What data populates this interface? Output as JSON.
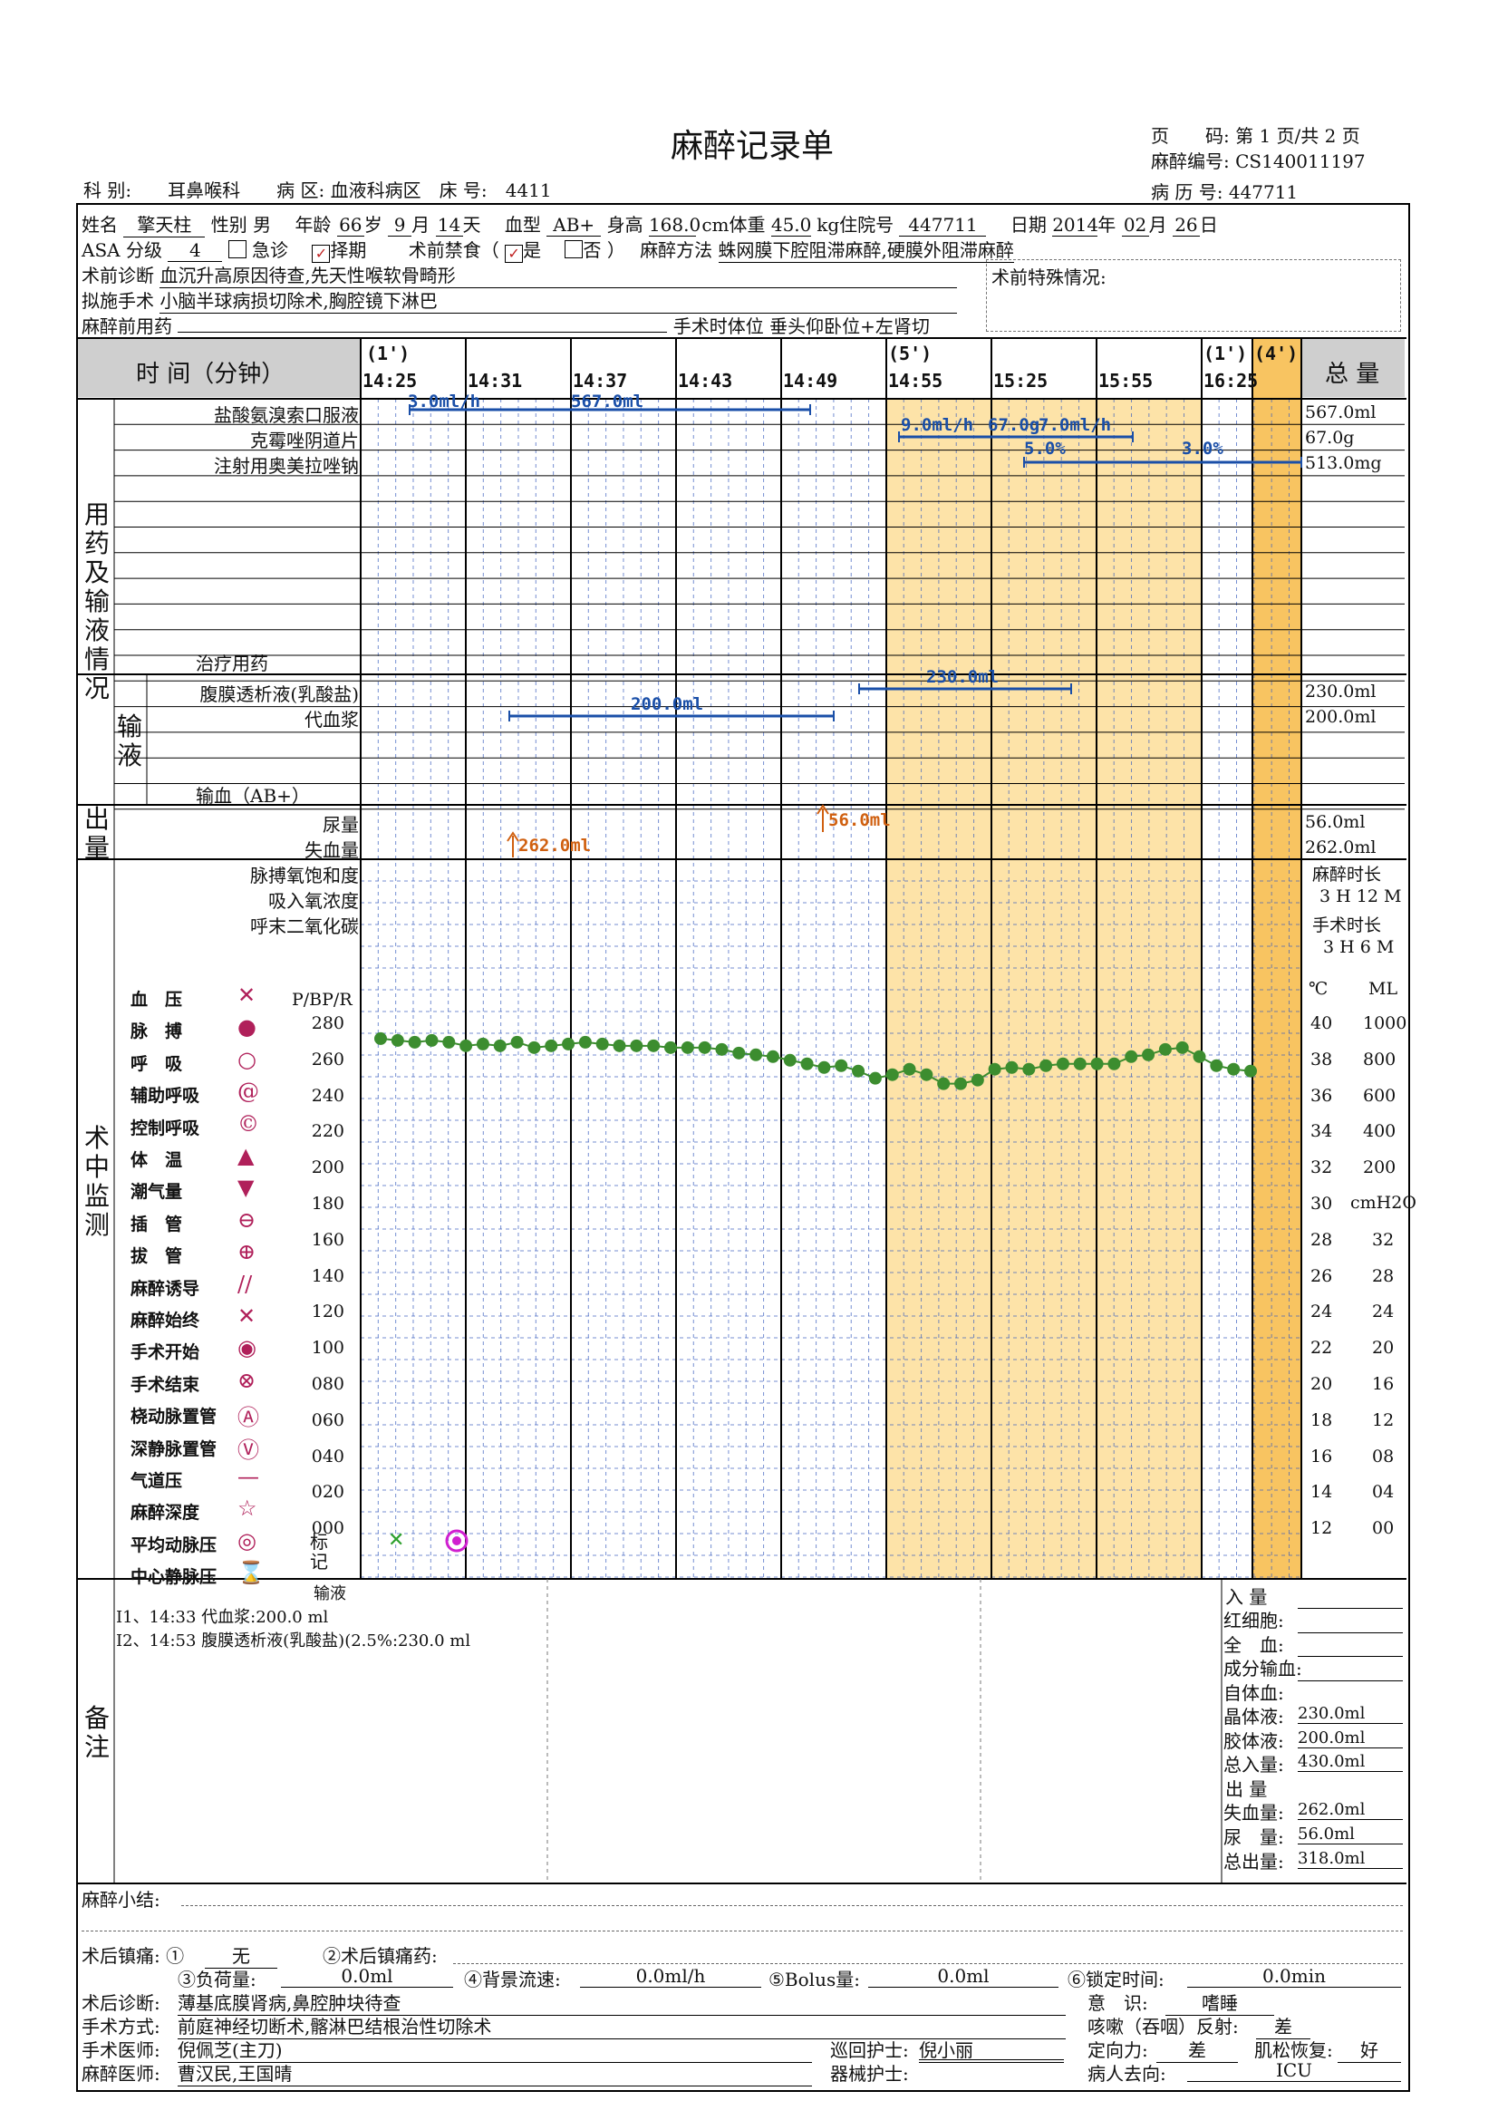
{
  "title": "麻醉记录单",
  "header": {
    "page_label": "页　　码:",
    "page_value": "第 1 页/共 2 页",
    "anesthesia_no_label": "麻醉编号:",
    "anesthesia_no": "CS140011197",
    "record_no_label": "病 历 号:",
    "record_no": "447711",
    "dept_label": "科 别:",
    "dept": "耳鼻喉科",
    "ward_label": "病 区:",
    "ward": "血液科病区",
    "bed_label": "床 号:",
    "bed": "4411"
  },
  "patient": {
    "name_label": "姓名",
    "name": "擎天柱",
    "sex_label": "性别",
    "sex": "男",
    "age_label": "年龄",
    "age": "66",
    "age_unit": "岁",
    "month": "9",
    "month_unit": "月",
    "day": "14",
    "day_unit": "天",
    "blood_label": "血型",
    "blood": "AB+",
    "height_label": "身高",
    "height": "168.0",
    "height_unit": "cm",
    "weight_label": "体重",
    "weight": "45.0",
    "weight_unit": "kg",
    "admission_label": "住院号",
    "admission": "447711",
    "date_label": "日期",
    "year": "2014",
    "year_unit": "年",
    "date_month": "02",
    "date_month_unit": "月",
    "date_day": "26",
    "date_day_unit": "日",
    "asa_label": "ASA 分级",
    "asa": "4",
    "emergency_label": "急诊",
    "elective_label": "择期",
    "fasting_label": "术前禁食（",
    "fasting_yes": "是",
    "fasting_no": "否 ）",
    "method_label": "麻醉方法",
    "method": "蛛网膜下腔阻滞麻醉,硬膜外阻滞麻醉",
    "diagnosis_label": "术前诊断",
    "diagnosis": "血沉升高原因待查,先天性喉软骨畸形",
    "special_label": "术前特殊情况:",
    "planned_label": "拟施手术",
    "planned": "小脑半球病损切除术,胸腔镜下淋巴",
    "premed_label": "麻醉前用药",
    "position_label": "手术时体位",
    "position": "垂头仰卧位+左肾切"
  },
  "time_header": {
    "label": "时 间（分钟）",
    "total_label": "总 量",
    "intervals": [
      "(1')",
      "(5')",
      "(1')",
      "(4')"
    ],
    "ticks": [
      "14:25",
      "14:31",
      "14:37",
      "14:43",
      "14:49",
      "14:55",
      "15:25",
      "15:55",
      "16:25"
    ]
  },
  "sections": {
    "medication": [
      "用",
      "药",
      "及",
      "输",
      "液",
      "情",
      "况"
    ],
    "infusion": [
      "输",
      "液"
    ],
    "output": [
      "出",
      "量"
    ],
    "monitor": [
      "术",
      "中",
      "监",
      "测"
    ],
    "notes": [
      "备",
      "注"
    ]
  },
  "drugs": [
    {
      "name": "盐酸氨溴索口服液",
      "total": "567.0ml",
      "labels": [
        "3.0ml/h",
        "567.0ml"
      ]
    },
    {
      "name": "克霉唑阴道片",
      "total": "67.0g",
      "labels": [
        "9.0ml/h",
        "67.0g",
        "7.0ml/h"
      ]
    },
    {
      "name": "注射用奥美拉唑钠",
      "total": "513.0mg",
      "labels": [
        "5.0%",
        "3.0%"
      ]
    }
  ],
  "treatment_label": "治疗用药",
  "fluids": [
    {
      "name": "腹膜透析液(乳酸盐)",
      "total": "230.0ml",
      "label": "230.0ml"
    },
    {
      "name": "代血浆",
      "total": "200.0ml",
      "label": "200.0ml"
    }
  ],
  "blood_label": "输血（AB+）",
  "outputs": [
    {
      "name": "尿量",
      "total": "56.0ml",
      "label": "56.0ml"
    },
    {
      "name": "失血量",
      "total": "262.0ml",
      "label": "262.0ml"
    }
  ],
  "resp_rows": [
    "脉搏氧饱和度",
    "吸入氧浓度",
    "呼末二氧化碳"
  ],
  "durations": {
    "anes_label": "麻醉时长",
    "anes": "3 H 12 M",
    "surg_label": "手术时长",
    "surg": "3 H 6 M"
  },
  "legend": [
    {
      "label": "血　压",
      "icon": "bp-icon",
      "glyph": "✕"
    },
    {
      "label": "脉　搏",
      "icon": "pulse-icon",
      "glyph": "●"
    },
    {
      "label": "呼　吸",
      "icon": "resp-icon",
      "glyph": "○"
    },
    {
      "label": "辅助呼吸",
      "icon": "assist-resp-icon",
      "glyph": "@"
    },
    {
      "label": "控制呼吸",
      "icon": "control-resp-icon",
      "glyph": "©"
    },
    {
      "label": "体　温",
      "icon": "temp-icon",
      "glyph": "▲"
    },
    {
      "label": "潮气量",
      "icon": "tidal-icon",
      "glyph": "▼"
    },
    {
      "label": "插　管",
      "icon": "intubate-icon",
      "glyph": "⊖"
    },
    {
      "label": "拔　管",
      "icon": "extubate-icon",
      "glyph": "⊕"
    },
    {
      "label": "麻醉诱导",
      "icon": "induction-icon",
      "glyph": "//"
    },
    {
      "label": "麻醉始终",
      "icon": "anes-start-end-icon",
      "glyph": "✕"
    },
    {
      "label": "手术开始",
      "icon": "surg-start-icon",
      "glyph": "◉"
    },
    {
      "label": "手术结束",
      "icon": "surg-end-icon",
      "glyph": "⊗"
    },
    {
      "label": "桡动脉置管",
      "icon": "radial-icon",
      "glyph": "Ⓐ"
    },
    {
      "label": "深静脉置管",
      "icon": "deep-vein-icon",
      "glyph": "Ⓥ"
    },
    {
      "label": "气道压",
      "icon": "airway-icon",
      "glyph": "—"
    },
    {
      "label": "麻醉深度",
      "icon": "depth-icon",
      "glyph": "☆"
    },
    {
      "label": "平均动脉压",
      "icon": "map-icon",
      "glyph": "◎"
    },
    {
      "label": "中心静脉压",
      "icon": "cvp-icon",
      "glyph": "⌛"
    }
  ],
  "axis": {
    "pbpr_label": "P/BP/R",
    "left": [
      "280",
      "260",
      "240",
      "220",
      "200",
      "180",
      "160",
      "140",
      "120",
      "100",
      "080",
      "060",
      "040",
      "020",
      "000"
    ],
    "c_label": "℃",
    "ml_label": "ML",
    "celsius": [
      "40",
      "38",
      "36",
      "34",
      "32",
      "30",
      "28",
      "26",
      "24",
      "22",
      "20",
      "18",
      "16",
      "14",
      "12"
    ],
    "ml": [
      "1000",
      "800",
      "600",
      "400",
      "200"
    ],
    "cmh2o_label": "cmH2O",
    "cmh2o": [
      "32",
      "28",
      "24",
      "20",
      "16",
      "12",
      "08",
      "04",
      "00"
    ]
  },
  "mark_label": "标记",
  "pulse_series": {
    "name": "脉搏",
    "values": [
      270,
      269,
      268,
      269,
      268,
      266,
      267,
      266,
      268,
      265,
      266,
      267,
      268,
      267,
      266,
      266,
      266,
      265,
      265,
      265,
      264,
      262,
      261,
      260,
      258,
      256,
      254,
      255,
      252,
      248,
      250,
      253,
      250,
      245,
      245,
      247,
      253,
      254,
      253,
      255,
      256,
      256,
      256,
      256,
      260,
      261,
      264,
      265,
      260,
      255,
      253,
      252
    ]
  },
  "notes": {
    "infusion_title": "输液",
    "lines": [
      "I1、14:33 代血浆:200.0 ml",
      "I2、14:53 腹膜透析液(乳酸盐)(2.5%:230.0 ml"
    ]
  },
  "intake": {
    "intake_title": "入 量",
    "items": [
      {
        "label": "红细胞:",
        "value": ""
      },
      {
        "label": "全　血:",
        "value": ""
      },
      {
        "label": "成分输血:",
        "value": ""
      },
      {
        "label": "自体血:",
        "value": ""
      },
      {
        "label": "晶体液:",
        "value": "230.0ml"
      },
      {
        "label": "胶体液:",
        "value": "200.0ml"
      },
      {
        "label": "总入量:",
        "value": "430.0ml"
      }
    ],
    "output_title": "出 量",
    "out_items": [
      {
        "label": "失血量:",
        "value": "262.0ml"
      },
      {
        "label": "尿　量:",
        "value": "56.0ml"
      },
      {
        "label": "总出量:",
        "value": "318.0ml"
      }
    ]
  },
  "summary_label": "麻醉小结:",
  "footer": {
    "pain_label": "术后镇痛: ①",
    "pain": "无",
    "pain_drug_label": "②术后镇痛药:",
    "load_label": "③负荷量:",
    "load": "0.0ml",
    "bg_label": "④背景流速:",
    "bg": "0.0ml/h",
    "bolus_label": "⑤Bolus量:",
    "bolus": "0.0ml",
    "lock_label": "⑥锁定时间:",
    "lock": "0.0min",
    "postdx_label": "术后诊断:",
    "postdx": "薄基底膜肾病,鼻腔肿块待查",
    "conscious_label": "意　识:",
    "conscious": "嗜睡",
    "surgery_label": "手术方式:",
    "surgery": "前庭神经切断术,髂淋巴结根治性切除术",
    "cough_label": "咳嗽（吞咽）反射:",
    "cough": "差",
    "surgeon_label": "手术医师:",
    "surgeon": "倪佩芝(主刀)",
    "circ_nurse_label": "巡回护士:",
    "circ_nurse": "倪小丽",
    "orient_label": "定向力:",
    "orient": "差",
    "muscle_label": "肌松恢复:",
    "muscle": "好",
    "anes_doc_label": "麻醉医师:",
    "anes_doc": "曹汉民,王国晴",
    "scrub_nurse_label": "器械护士:",
    "scrub_nurse": "",
    "dest_label": "病人去向:",
    "dest": "ICU"
  },
  "colors": {
    "shade_light": "#fde3a8",
    "shade_dark": "#f8c461",
    "grid_blue": "#3b5fbf",
    "pulse_green": "#3c8d2f",
    "drug_blue": "#1a4fa8",
    "output_orange": "#d06010",
    "header_gray": "#cfcfcf"
  }
}
